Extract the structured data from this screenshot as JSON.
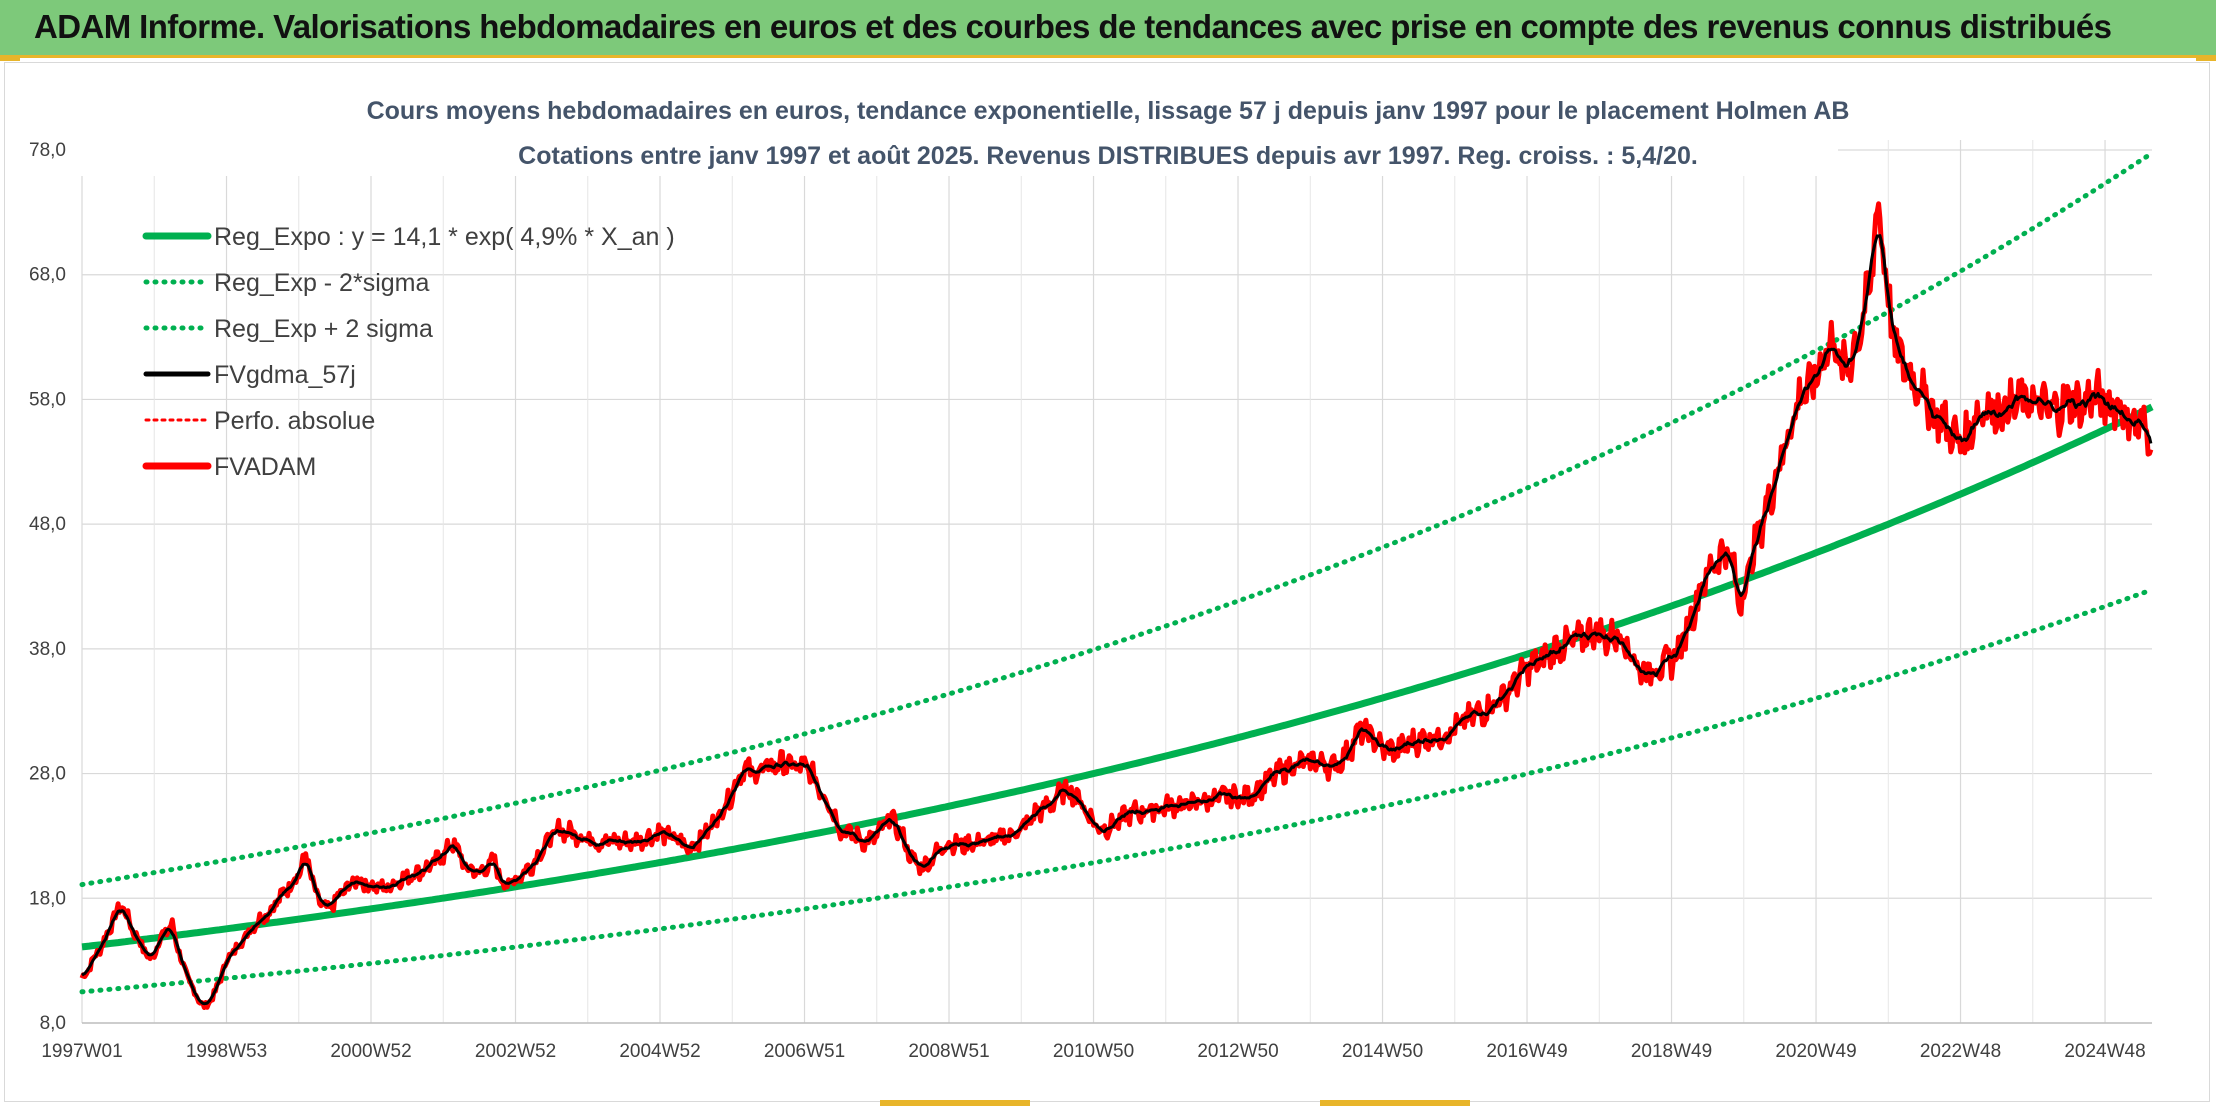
{
  "banner": {
    "title": "ADAM Informe. Valorisations hebdomadaires en euros et des courbes de tendances avec prise en compte des revenus connus distribués"
  },
  "colors": {
    "banner_bg": "#7dc97a",
    "accent": "#e8b52a",
    "trend": "#00b050",
    "price": "#ff0000",
    "smooth": "#000000"
  },
  "chart_data": {
    "type": "line",
    "title": "Cours moyens hebdomadaires en euros, tendance exponentielle, lissage 57 j depuis janv 1997 pour le placement Holmen AB",
    "subtitle": "Cotations entre janv 1997 et août 2025. Revenus DISTRIBUES depuis avr 1997. Reg. croiss. : 5,4/20.",
    "ylim": [
      8,
      78
    ],
    "y_ticks": [
      "78,0",
      "68,0",
      "58,0",
      "48,0",
      "38,0",
      "28,0",
      "18,0",
      "8,0"
    ],
    "xlim": [
      1997.0,
      2025.65
    ],
    "x_ticks": [
      "1997W01",
      "1998W53",
      "2000W52",
      "2002W52",
      "2004W52",
      "2006W51",
      "2008W51",
      "2010W50",
      "2012W50",
      "2014W50",
      "2016W49",
      "2018W49",
      "2020W49",
      "2022W48",
      "2024W48"
    ],
    "grid": "vertical-and-horizontal",
    "legend_position": "top-left",
    "series": [
      {
        "name": "Reg_Expo : y = 14,1 * exp( 4,9% *  X_an )",
        "style": "solid-green-thick",
        "formula": {
          "a": 14.1,
          "rate": 0.049,
          "offset": 0
        }
      },
      {
        "name": "Reg_Exp - 2*sigma",
        "style": "dotted-green",
        "formula": {
          "a": 10.5,
          "rate": 0.049,
          "offset": 0
        }
      },
      {
        "name": "Reg_Exp + 2 sigma",
        "style": "dotted-green",
        "formula": {
          "a": 19.1,
          "rate": 0.049,
          "offset": 0
        }
      },
      {
        "name": "FVgdma_57j",
        "style": "solid-black"
      },
      {
        "name": "Perfo. absolue",
        "style": "dotted-red"
      },
      {
        "name": "FVADAM",
        "style": "solid-red-thick"
      }
    ],
    "price_points": [
      [
        1997.0,
        11.5
      ],
      [
        1997.15,
        13.0
      ],
      [
        1997.3,
        14.5
      ],
      [
        1997.45,
        16.5
      ],
      [
        1997.55,
        17.5
      ],
      [
        1997.7,
        15.5
      ],
      [
        1997.85,
        14.0
      ],
      [
        1997.95,
        13.0
      ],
      [
        1998.1,
        15.0
      ],
      [
        1998.25,
        15.8
      ],
      [
        1998.4,
        12.5
      ],
      [
        1998.55,
        10.5
      ],
      [
        1998.7,
        9.2
      ],
      [
        1998.85,
        10.5
      ],
      [
        1999.0,
        13.0
      ],
      [
        1999.2,
        14.5
      ],
      [
        1999.4,
        16.0
      ],
      [
        1999.6,
        17.0
      ],
      [
        1999.8,
        18.5
      ],
      [
        2000.0,
        20.0
      ],
      [
        2000.1,
        21.5
      ],
      [
        2000.25,
        18.0
      ],
      [
        2000.4,
        17.0
      ],
      [
        2000.6,
        18.5
      ],
      [
        2000.8,
        19.5
      ],
      [
        2001.0,
        19.0
      ],
      [
        2001.2,
        18.8
      ],
      [
        2001.4,
        19.5
      ],
      [
        2001.6,
        20.0
      ],
      [
        2001.8,
        20.5
      ],
      [
        2002.0,
        21.5
      ],
      [
        2002.15,
        22.5
      ],
      [
        2002.3,
        20.5
      ],
      [
        2002.5,
        20.0
      ],
      [
        2002.7,
        21.0
      ],
      [
        2002.85,
        19.0
      ],
      [
        2003.0,
        19.5
      ],
      [
        2003.2,
        20.5
      ],
      [
        2003.45,
        22.5
      ],
      [
        2003.6,
        23.5
      ],
      [
        2003.8,
        23.2
      ],
      [
        2004.0,
        22.8
      ],
      [
        2004.2,
        22.5
      ],
      [
        2004.4,
        22.6
      ],
      [
        2004.6,
        22.5
      ],
      [
        2004.8,
        22.8
      ],
      [
        2005.0,
        23.3
      ],
      [
        2005.2,
        22.8
      ],
      [
        2005.4,
        22.0
      ],
      [
        2005.6,
        23.0
      ],
      [
        2005.8,
        24.5
      ],
      [
        2006.0,
        26.5
      ],
      [
        2006.15,
        28.5
      ],
      [
        2006.3,
        28.0
      ],
      [
        2006.5,
        28.5
      ],
      [
        2006.7,
        28.8
      ],
      [
        2006.9,
        28.5
      ],
      [
        2007.05,
        28.5
      ],
      [
        2007.2,
        27.0
      ],
      [
        2007.35,
        25.5
      ],
      [
        2007.5,
        23.5
      ],
      [
        2007.7,
        23.0
      ],
      [
        2007.85,
        22.5
      ],
      [
        2008.0,
        23.0
      ],
      [
        2008.2,
        24.5
      ],
      [
        2008.35,
        23.0
      ],
      [
        2008.5,
        21.0
      ],
      [
        2008.65,
        20.5
      ],
      [
        2008.8,
        21.5
      ],
      [
        2009.0,
        22.5
      ],
      [
        2009.2,
        22.3
      ],
      [
        2009.4,
        22.5
      ],
      [
        2009.6,
        22.6
      ],
      [
        2009.8,
        23.0
      ],
      [
        2010.0,
        23.5
      ],
      [
        2010.2,
        24.8
      ],
      [
        2010.4,
        25.5
      ],
      [
        2010.6,
        26.8
      ],
      [
        2010.8,
        26.0
      ],
      [
        2010.95,
        24.5
      ],
      [
        2011.1,
        23.5
      ],
      [
        2011.3,
        24.0
      ],
      [
        2011.5,
        24.8
      ],
      [
        2011.7,
        25.0
      ],
      [
        2011.9,
        25.2
      ],
      [
        2012.1,
        25.5
      ],
      [
        2012.3,
        25.5
      ],
      [
        2012.5,
        25.8
      ],
      [
        2012.7,
        26.0
      ],
      [
        2012.9,
        26.2
      ],
      [
        2013.1,
        26.0
      ],
      [
        2013.3,
        26.8
      ],
      [
        2013.5,
        27.8
      ],
      [
        2013.7,
        28.5
      ],
      [
        2013.9,
        28.8
      ],
      [
        2014.1,
        29.0
      ],
      [
        2014.3,
        28.5
      ],
      [
        2014.5,
        29.5
      ],
      [
        2014.7,
        31.5
      ],
      [
        2014.85,
        31.0
      ],
      [
        2015.0,
        30.0
      ],
      [
        2015.2,
        29.8
      ],
      [
        2015.4,
        30.5
      ],
      [
        2015.6,
        30.8
      ],
      [
        2015.8,
        31.0
      ],
      [
        2016.0,
        31.5
      ],
      [
        2016.2,
        32.5
      ],
      [
        2016.4,
        33.0
      ],
      [
        2016.6,
        33.8
      ],
      [
        2016.8,
        35.0
      ],
      [
        2017.0,
        36.5
      ],
      [
        2017.2,
        37.0
      ],
      [
        2017.4,
        38.0
      ],
      [
        2017.6,
        38.5
      ],
      [
        2017.8,
        39.0
      ],
      [
        2017.95,
        39.5
      ],
      [
        2018.1,
        38.8
      ],
      [
        2018.3,
        39.2
      ],
      [
        2018.45,
        37.5
      ],
      [
        2018.6,
        36.0
      ],
      [
        2018.8,
        36.5
      ],
      [
        2019.0,
        37.0
      ],
      [
        2019.15,
        38.5
      ],
      [
        2019.3,
        41.0
      ],
      [
        2019.45,
        43.5
      ],
      [
        2019.6,
        45.0
      ],
      [
        2019.75,
        46.0
      ],
      [
        2019.85,
        44.5
      ],
      [
        2019.95,
        41.5
      ],
      [
        2020.05,
        44.0
      ],
      [
        2020.2,
        47.0
      ],
      [
        2020.35,
        50.0
      ],
      [
        2020.5,
        53.0
      ],
      [
        2020.65,
        56.0
      ],
      [
        2020.8,
        58.5
      ],
      [
        2020.95,
        59.0
      ],
      [
        2021.1,
        61.5
      ],
      [
        2021.25,
        63.0
      ],
      [
        2021.35,
        60.0
      ],
      [
        2021.5,
        61.5
      ],
      [
        2021.65,
        64.5
      ],
      [
        2021.75,
        67.0
      ],
      [
        2021.8,
        70.0
      ],
      [
        2021.85,
        74.0
      ],
      [
        2021.92,
        71.0
      ],
      [
        2022.0,
        66.0
      ],
      [
        2022.1,
        62.0
      ],
      [
        2022.2,
        61.0
      ],
      [
        2022.3,
        60.0
      ],
      [
        2022.45,
        59.0
      ],
      [
        2022.6,
        57.0
      ],
      [
        2022.75,
        56.5
      ],
      [
        2022.9,
        55.0
      ],
      [
        2023.05,
        54.5
      ],
      [
        2023.2,
        56.5
      ],
      [
        2023.35,
        57.5
      ],
      [
        2023.5,
        57.0
      ],
      [
        2023.7,
        57.5
      ],
      [
        2023.9,
        58.0
      ],
      [
        2024.1,
        57.5
      ],
      [
        2024.3,
        57.0
      ],
      [
        2024.5,
        58.0
      ],
      [
        2024.7,
        57.5
      ],
      [
        2024.85,
        58.5
      ],
      [
        2025.0,
        57.5
      ],
      [
        2025.15,
        57.8
      ],
      [
        2025.3,
        56.5
      ],
      [
        2025.45,
        56.0
      ],
      [
        2025.6,
        55.5
      ],
      [
        2025.65,
        55.3
      ]
    ]
  }
}
